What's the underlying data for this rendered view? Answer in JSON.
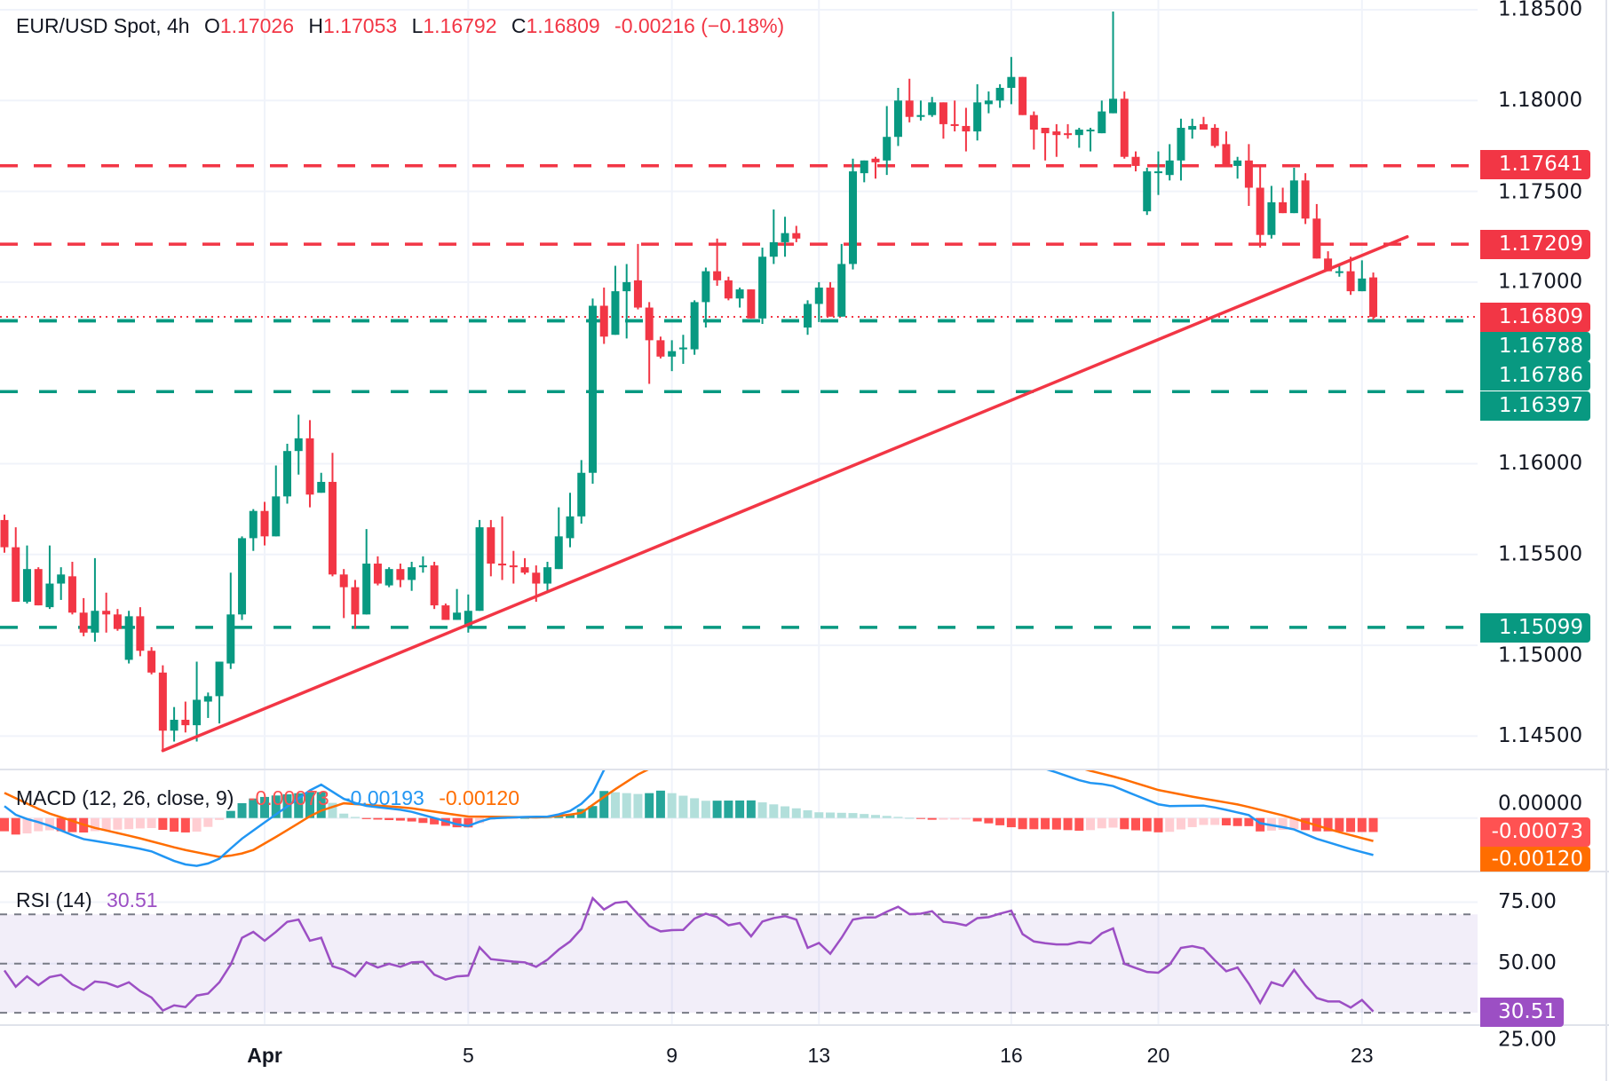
{
  "header": {
    "symbol": "EUR/USD Spot, 4h",
    "open_label": "O",
    "open": "1.17026",
    "high_label": "H",
    "high": "1.17053",
    "low_label": "L",
    "low": "1.16792",
    "close_label": "C",
    "close": "1.16809",
    "change": "-0.00216 (−0.18%)"
  },
  "colors": {
    "up": "#089981",
    "down": "#f23645",
    "macd": "#2196f3",
    "signal": "#ff6d00",
    "rsi": "#9c4fc4",
    "hist_up_strong": "#26a69a",
    "hist_up_weak": "#b2dfdb",
    "hist_down_strong": "#ff5252",
    "hist_down_weak": "#ffcdd2"
  },
  "price_levels": {
    "resistance": [
      {
        "value": 1.17641,
        "label": "1.17641"
      },
      {
        "value": 1.17209,
        "label": "1.17209"
      }
    ],
    "current": {
      "value": 1.16809,
      "label": "1.16809"
    },
    "support": [
      {
        "value": 1.16788,
        "label": "1.16788"
      },
      {
        "value": 1.16786,
        "label": "1.16786"
      },
      {
        "value": 1.16397,
        "label": "1.16397"
      },
      {
        "value": 1.15099,
        "label": "1.15099"
      }
    ]
  },
  "macd_legend": {
    "title": "MACD (12, 26, close, 9)",
    "hist": "-0.00073",
    "macd": "-0.00193",
    "signal": "-0.00120"
  },
  "rsi_legend": {
    "title": "RSI (14)",
    "value": "30.51"
  },
  "chart_data": {
    "type": "candlestick",
    "title": "EUR/USD Spot, 4h",
    "price_axis": {
      "ticks": [
        "1.18500",
        "1.18000",
        "1.17500",
        "1.17000",
        "1.16000",
        "1.15500",
        "1.15000",
        "1.14500"
      ],
      "tick_values": [
        1.185,
        1.18,
        1.175,
        1.17,
        1.16,
        1.155,
        1.15,
        1.145
      ],
      "range": [
        1.1432,
        1.1858
      ]
    },
    "time_axis": [
      {
        "label": "Apr",
        "candle": 23,
        "bold": true
      },
      {
        "label": "5",
        "candle": 41
      },
      {
        "label": "9",
        "candle": 59
      },
      {
        "label": "13",
        "candle": 72
      },
      {
        "label": "16",
        "candle": 89
      },
      {
        "label": "20",
        "candle": 102
      },
      {
        "label": "23",
        "candle": 120
      }
    ],
    "grid": true,
    "candles_ohlc": [
      [
        1.1569,
        1.1572,
        1.1551,
        1.1554
      ],
      [
        1.1554,
        1.1565,
        1.1524,
        1.1524
      ],
      [
        1.1524,
        1.1555,
        1.1523,
        1.1542
      ],
      [
        1.1542,
        1.1543,
        1.1522,
        1.1522
      ],
      [
        1.1521,
        1.1555,
        1.152,
        1.1534
      ],
      [
        1.1534,
        1.1543,
        1.1525,
        1.1539
      ],
      [
        1.1538,
        1.1546,
        1.1517,
        1.1518
      ],
      [
        1.1518,
        1.1526,
        1.1505,
        1.1507
      ],
      [
        1.1507,
        1.1548,
        1.1502,
        1.1519
      ],
      [
        1.1519,
        1.1529,
        1.1507,
        1.1517
      ],
      [
        1.1517,
        1.152,
        1.1508,
        1.1509
      ],
      [
        1.1492,
        1.1519,
        1.149,
        1.1516
      ],
      [
        1.1516,
        1.1521,
        1.1494,
        1.1497
      ],
      [
        1.1497,
        1.1499,
        1.1484,
        1.1485
      ],
      [
        1.1485,
        1.1489,
        1.1442,
        1.1453
      ],
      [
        1.1453,
        1.1466,
        1.1447,
        1.1459
      ],
      [
        1.1459,
        1.1469,
        1.1452,
        1.1456
      ],
      [
        1.1456,
        1.1491,
        1.1447,
        1.147
      ],
      [
        1.1469,
        1.1474,
        1.146,
        1.1472
      ],
      [
        1.1472,
        1.1491,
        1.1457,
        1.1491
      ],
      [
        1.149,
        1.154,
        1.1487,
        1.1517
      ],
      [
        1.1517,
        1.156,
        1.1514,
        1.1559
      ],
      [
        1.1559,
        1.1575,
        1.1552,
        1.1574
      ],
      [
        1.1574,
        1.1579,
        1.1555,
        1.156
      ],
      [
        1.156,
        1.1599,
        1.156,
        1.1582
      ],
      [
        1.1582,
        1.1611,
        1.1578,
        1.1607
      ],
      [
        1.1607,
        1.1627,
        1.1594,
        1.1614
      ],
      [
        1.1614,
        1.1624,
        1.1576,
        1.1583
      ],
      [
        1.1584,
        1.1595,
        1.1584,
        1.159
      ],
      [
        1.159,
        1.1606,
        1.1538,
        1.1539
      ],
      [
        1.1539,
        1.1542,
        1.1515,
        1.1532
      ],
      [
        1.1532,
        1.1536,
        1.1509,
        1.1517
      ],
      [
        1.1517,
        1.1564,
        1.1517,
        1.1545
      ],
      [
        1.1545,
        1.1549,
        1.1533,
        1.1534
      ],
      [
        1.1533,
        1.1543,
        1.1532,
        1.1542
      ],
      [
        1.1542,
        1.1545,
        1.1532,
        1.1536
      ],
      [
        1.1536,
        1.1546,
        1.153,
        1.1543
      ],
      [
        1.1543,
        1.1549,
        1.154,
        1.1544
      ],
      [
        1.1544,
        1.1546,
        1.152,
        1.1522
      ],
      [
        1.1522,
        1.1523,
        1.1514,
        1.1514
      ],
      [
        1.1514,
        1.1531,
        1.1514,
        1.1518
      ],
      [
        1.151,
        1.1528,
        1.1507,
        1.1519
      ],
      [
        1.1519,
        1.1569,
        1.1519,
        1.1565
      ],
      [
        1.1565,
        1.1569,
        1.1538,
        1.1545
      ],
      [
        1.1545,
        1.1571,
        1.1536,
        1.1544
      ],
      [
        1.1544,
        1.1552,
        1.1534,
        1.1543
      ],
      [
        1.1543,
        1.1548,
        1.1539,
        1.154
      ],
      [
        1.154,
        1.1544,
        1.1524,
        1.1534
      ],
      [
        1.1534,
        1.1546,
        1.153,
        1.1543
      ],
      [
        1.1542,
        1.1576,
        1.1542,
        1.156
      ],
      [
        1.1559,
        1.1584,
        1.1554,
        1.1571
      ],
      [
        1.1571,
        1.1602,
        1.1567,
        1.1595
      ],
      [
        1.1595,
        1.1691,
        1.1589,
        1.1687
      ],
      [
        1.1687,
        1.1697,
        1.1666,
        1.167
      ],
      [
        1.1671,
        1.1709,
        1.1671,
        1.1695
      ],
      [
        1.1695,
        1.171,
        1.1669,
        1.17
      ],
      [
        1.1701,
        1.1721,
        1.1685,
        1.1686
      ],
      [
        1.1686,
        1.1689,
        1.1644,
        1.1668
      ],
      [
        1.1668,
        1.167,
        1.1658,
        1.1659
      ],
      [
        1.1659,
        1.1668,
        1.1651,
        1.1662
      ],
      [
        1.1663,
        1.1671,
        1.1655,
        1.1664
      ],
      [
        1.1663,
        1.169,
        1.166,
        1.1689
      ],
      [
        1.1689,
        1.1708,
        1.1675,
        1.1706
      ],
      [
        1.1706,
        1.1724,
        1.1698,
        1.1701
      ],
      [
        1.1701,
        1.1703,
        1.169,
        1.1691
      ],
      [
        1.1691,
        1.1697,
        1.1686,
        1.1696
      ],
      [
        1.1696,
        1.1696,
        1.168,
        1.168
      ],
      [
        1.168,
        1.1719,
        1.1677,
        1.1714
      ],
      [
        1.1714,
        1.174,
        1.171,
        1.1722
      ],
      [
        1.1722,
        1.1736,
        1.1714,
        1.1727
      ],
      [
        1.1727,
        1.1731,
        1.1722,
        1.1724
      ],
      [
        1.1675,
        1.169,
        1.1671,
        1.1688
      ],
      [
        1.1688,
        1.17,
        1.1678,
        1.1697
      ],
      [
        1.1697,
        1.17,
        1.1681,
        1.1681
      ],
      [
        1.1681,
        1.1721,
        1.1681,
        1.171
      ],
      [
        1.171,
        1.1768,
        1.1707,
        1.1761
      ],
      [
        1.176,
        1.1767,
        1.1755,
        1.1767
      ],
      [
        1.1768,
        1.1769,
        1.1757,
        1.1766
      ],
      [
        1.1767,
        1.1797,
        1.1759,
        1.178
      ],
      [
        1.178,
        1.1807,
        1.1775,
        1.18
      ],
      [
        1.18,
        1.1812,
        1.1788,
        1.1791
      ],
      [
        1.1791,
        1.18,
        1.1789,
        1.1792
      ],
      [
        1.1792,
        1.1802,
        1.1791,
        1.1799
      ],
      [
        1.1799,
        1.1799,
        1.1779,
        1.1787
      ],
      [
        1.1787,
        1.18,
        1.1783,
        1.1786
      ],
      [
        1.1786,
        1.1796,
        1.1772,
        1.1783
      ],
      [
        1.1783,
        1.1809,
        1.1778,
        1.1799
      ],
      [
        1.1798,
        1.1805,
        1.1793,
        1.18
      ],
      [
        1.18,
        1.1809,
        1.1796,
        1.1807
      ],
      [
        1.1807,
        1.1824,
        1.1798,
        1.1813
      ],
      [
        1.1813,
        1.1813,
        1.1792,
        1.1792
      ],
      [
        1.1792,
        1.1794,
        1.1773,
        1.1784
      ],
      [
        1.1785,
        1.1785,
        1.1767,
        1.1782
      ],
      [
        1.1783,
        1.1787,
        1.1769,
        1.1781
      ],
      [
        1.1782,
        1.1787,
        1.1779,
        1.1781
      ],
      [
        1.1781,
        1.1785,
        1.1774,
        1.1784
      ],
      [
        1.1784,
        1.1785,
        1.1772,
        1.1784
      ],
      [
        1.1782,
        1.18,
        1.1782,
        1.1794
      ],
      [
        1.1793,
        1.1849,
        1.1793,
        1.1801
      ],
      [
        1.1801,
        1.1805,
        1.1768,
        1.1769
      ],
      [
        1.1769,
        1.1772,
        1.1761,
        1.1764
      ],
      [
        1.1739,
        1.1763,
        1.1737,
        1.1761
      ],
      [
        1.1761,
        1.1772,
        1.1748,
        1.1761
      ],
      [
        1.1759,
        1.1776,
        1.1756,
        1.1767
      ],
      [
        1.1767,
        1.179,
        1.1756,
        1.1785
      ],
      [
        1.1784,
        1.179,
        1.1779,
        1.1786
      ],
      [
        1.1787,
        1.1791,
        1.1784,
        1.1784
      ],
      [
        1.1785,
        1.1787,
        1.1774,
        1.1775
      ],
      [
        1.1776,
        1.1783,
        1.1764,
        1.1764
      ],
      [
        1.1764,
        1.1769,
        1.1757,
        1.1767
      ],
      [
        1.1767,
        1.1776,
        1.1742,
        1.1752
      ],
      [
        1.1752,
        1.1764,
        1.1719,
        1.1726
      ],
      [
        1.1726,
        1.1753,
        1.1724,
        1.1744
      ],
      [
        1.1744,
        1.1752,
        1.1738,
        1.1738
      ],
      [
        1.1738,
        1.1763,
        1.1738,
        1.1756
      ],
      [
        1.1756,
        1.176,
        1.1732,
        1.1735
      ],
      [
        1.1735,
        1.1743,
        1.1713,
        1.1713
      ],
      [
        1.1713,
        1.1717,
        1.1706,
        1.1706
      ],
      [
        1.1706,
        1.1709,
        1.1703,
        1.1706
      ],
      [
        1.1706,
        1.1714,
        1.1693,
        1.1695
      ],
      [
        1.1695,
        1.1712,
        1.1695,
        1.1702
      ],
      [
        1.17026,
        1.17053,
        1.16792,
        1.16809
      ]
    ],
    "trendline": {
      "from": {
        "candle": 14,
        "price": 1.1442
      },
      "to": {
        "candle": 124,
        "price": 1.1725
      }
    },
    "macd": {
      "params": "12, 26, close, 9",
      "range": [
        -0.0028,
        0.0025
      ],
      "axis_tick": "0.00000",
      "macd_points": [
        [
          0,
          0.00062
        ],
        [
          1.2,
          8e-05
        ],
        [
          3.6,
          -0.00031
        ],
        [
          6.8,
          -0.00108
        ],
        [
          10,
          -0.00139
        ],
        [
          12.8,
          -0.00169
        ],
        [
          15.6,
          -0.00239
        ],
        [
          17.2,
          -0.00251
        ],
        [
          18.8,
          -0.00223
        ],
        [
          20.8,
          -0.00116
        ],
        [
          22.8,
          -0.00031
        ],
        [
          25.2,
          0.00069
        ],
        [
          27.6,
          0.00169
        ],
        [
          28,
          0.00174
        ],
        [
          30,
          0.001
        ],
        [
          31.6,
          0.00066
        ],
        [
          35.6,
          0.00039
        ],
        [
          38,
          0
        ],
        [
          40.4,
          -0.00039
        ],
        [
          41.3,
          -0.00042
        ],
        [
          42.5,
          -3e-05
        ],
        [
          45.7,
          5e-05
        ],
        [
          48.4,
          8e-05
        ],
        [
          50.5,
          0.00046
        ],
        [
          52,
          0.00131
        ],
        [
          53,
          0.00251
        ],
        [
          58,
          0.0042
        ],
        [
          66,
          0.0048
        ],
        [
          75,
          0.0045
        ],
        [
          85,
          0.0038
        ],
        [
          92.6,
          0.00246
        ],
        [
          95.6,
          0.00185
        ],
        [
          97.7,
          0.00174
        ],
        [
          99.8,
          0.00123
        ],
        [
          102.4,
          0.00062
        ],
        [
          106.2,
          0.00065
        ],
        [
          108.3,
          0.00039
        ],
        [
          110,
          0.00015
        ],
        [
          110.9,
          -0.00026
        ],
        [
          113.9,
          -0.00057
        ],
        [
          116,
          -0.00108
        ],
        [
          119,
          -0.00162
        ],
        [
          121,
          -0.00193
        ]
      ],
      "signal_points": [
        [
          0,
          0.00131
        ],
        [
          3.6,
          0.00031
        ],
        [
          7.6,
          -0.00046
        ],
        [
          11.6,
          -0.001
        ],
        [
          15.6,
          -0.00162
        ],
        [
          19.2,
          -0.00205
        ],
        [
          21.7,
          -0.00177
        ],
        [
          24.4,
          -0.00085
        ],
        [
          27.6,
          0.00031
        ],
        [
          30,
          0.00077
        ],
        [
          35.6,
          0.00054
        ],
        [
          40.9,
          8e-05
        ],
        [
          47.6,
          3e-05
        ],
        [
          50.9,
          0.00023
        ],
        [
          53.7,
          0.00139
        ],
        [
          56.5,
          0.00246
        ],
        [
          62,
          0.0036
        ],
        [
          72,
          0.0043
        ],
        [
          82,
          0.0041
        ],
        [
          90,
          0.0035
        ],
        [
          96,
          0.00246
        ],
        [
          98.6,
          0.00208
        ],
        [
          102,
          0.00146
        ],
        [
          105.3,
          0.00108
        ],
        [
          109.2,
          0.00069
        ],
        [
          113.4,
          8e-05
        ],
        [
          117.7,
          -0.00069
        ],
        [
          121,
          -0.0012
        ]
      ],
      "last": {
        "hist": "-0.00073",
        "signal": "-0.00120"
      }
    },
    "rsi": {
      "period": 14,
      "bands": [
        70,
        50,
        30
      ],
      "axis_ticks": [
        "75.00",
        "50.00",
        "25.00"
      ],
      "axis_tick_values": [
        75,
        50,
        25
      ],
      "values": [
        47.2,
        40.6,
        44.8,
        41.2,
        44.5,
        45.4,
        41.5,
        39.3,
        42.7,
        42.2,
        40.5,
        42.4,
        38.8,
        36.2,
        30.9,
        33.0,
        32.3,
        37.0,
        37.8,
        42.4,
        49.6,
        60.5,
        62.9,
        59.3,
        62.9,
        67.0,
        67.9,
        59.3,
        60.5,
        48.9,
        47.5,
        44.8,
        50.5,
        48.4,
        49.9,
        48.7,
        50.5,
        50.7,
        45.5,
        43.5,
        44.8,
        45.1,
        56.6,
        51.8,
        51.3,
        50.8,
        50.5,
        48.7,
        51.6,
        55.7,
        59.0,
        64.1,
        76.6,
        72.0,
        74.7,
        75.2,
        70.1,
        65.3,
        63.1,
        63.6,
        63.7,
        68.3,
        70.3,
        68.9,
        65.6,
        66.5,
        61.1,
        67.1,
        68.5,
        69.3,
        67.9,
        56.4,
        58.4,
        54.0,
        60.5,
        67.9,
        68.7,
        68.8,
        71.1,
        73.1,
        70.1,
        70.3,
        71.3,
        67.0,
        66.5,
        65.5,
        68.5,
        68.9,
        70.3,
        71.5,
        62.0,
        59.0,
        58.3,
        57.8,
        57.8,
        58.8,
        58.3,
        62.3,
        64.3,
        49.9,
        48.2,
        46.6,
        46.3,
        49.6,
        56.4,
        57.1,
        56.1,
        51.3,
        46.9,
        48.4,
        41.8,
        34.0,
        42.4,
        40.9,
        47.4,
        41.2,
        36.0,
        34.6,
        34.6,
        32.1,
        35.2,
        30.51
      ],
      "last": "30.51"
    }
  }
}
